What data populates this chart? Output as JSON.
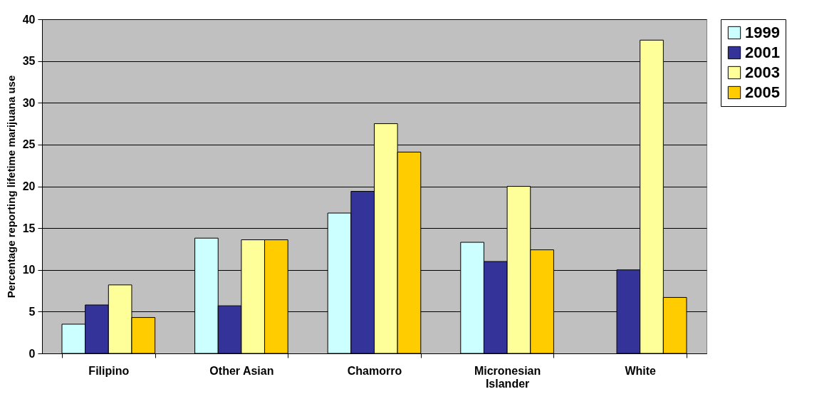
{
  "chart_data": {
    "type": "bar",
    "ylabel": "Percentage reporting lifetime marijuana use",
    "categories": [
      "Filipino",
      "Other Asian",
      "Chamorro",
      "Micronesian Islander",
      "White"
    ],
    "series": [
      {
        "name": "1999",
        "color": "#ccffff",
        "values": [
          3.5,
          13.8,
          16.8,
          13.3,
          null
        ]
      },
      {
        "name": "2001",
        "color": "#333399",
        "values": [
          5.8,
          5.7,
          19.4,
          11.0,
          10.0
        ]
      },
      {
        "name": "2003",
        "color": "#ffff99",
        "values": [
          8.2,
          13.6,
          27.5,
          20.0,
          37.5
        ]
      },
      {
        "name": "2005",
        "color": "#ffcc00",
        "values": [
          4.3,
          13.6,
          24.1,
          12.4,
          6.7
        ]
      }
    ],
    "ylim": [
      0,
      40
    ],
    "yticks": [
      0,
      5,
      10,
      15,
      20,
      25,
      30,
      35,
      40
    ],
    "grid": "y",
    "legend": "right"
  }
}
